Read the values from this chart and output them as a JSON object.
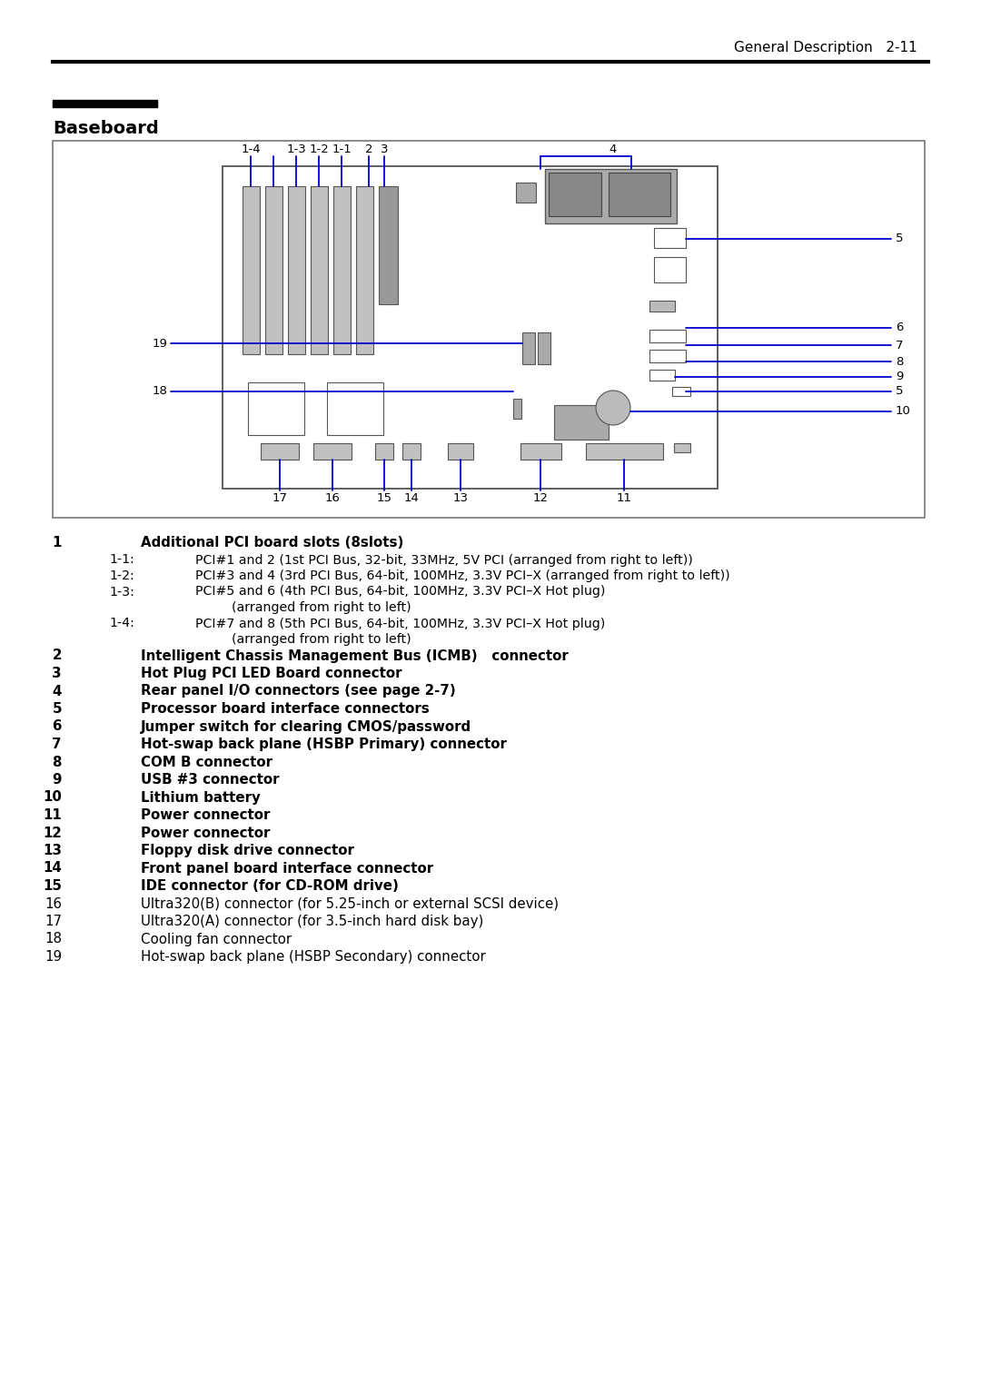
{
  "page_header": "General Description   2-11",
  "section_title": "Baseboard",
  "bg_color": "#ffffff",
  "blue": "#0000cc",
  "black": "#000000",
  "list_items": [
    {
      "num": "1",
      "bold": true,
      "indent": 0,
      "text": "Additional PCI board slots (8slots)"
    },
    {
      "num": "1-1:",
      "bold": false,
      "indent": 1,
      "text": "PCI#1 and 2 (1st PCI Bus, 32-bit, 33MHz, 5V PCI (arranged from right to left))"
    },
    {
      "num": "1-2:",
      "bold": false,
      "indent": 1,
      "text": "PCI#3 and 4 (3rd PCI Bus, 64-bit, 100MHz, 3.3V PCI–X (arranged from right to left))"
    },
    {
      "num": "1-3:",
      "bold": false,
      "indent": 1,
      "text": "PCI#5 and 6 (4th PCI Bus, 64-bit, 100MHz, 3.3V PCI–X Hot plug)"
    },
    {
      "num": "",
      "bold": false,
      "indent": 2,
      "text": "(arranged from right to left)"
    },
    {
      "num": "1-4:",
      "bold": false,
      "indent": 1,
      "text": "PCI#7 and 8 (5th PCI Bus, 64-bit, 100MHz, 3.3V PCI–X Hot plug)"
    },
    {
      "num": "",
      "bold": false,
      "indent": 2,
      "text": "(arranged from right to left)"
    },
    {
      "num": "2",
      "bold": true,
      "indent": 0,
      "text": "Intelligent Chassis Management Bus (ICMB)   connector"
    },
    {
      "num": "3",
      "bold": true,
      "indent": 0,
      "text": "Hot Plug PCI LED Board connector"
    },
    {
      "num": "4",
      "bold": true,
      "indent": 0,
      "text": "Rear panel I/O connectors (see page 2-7)"
    },
    {
      "num": "5",
      "bold": true,
      "indent": 0,
      "text": "Processor board interface connectors"
    },
    {
      "num": "6",
      "bold": true,
      "indent": 0,
      "text": "Jumper switch for clearing CMOS/password"
    },
    {
      "num": "7",
      "bold": true,
      "indent": 0,
      "text": "Hot-swap back plane (HSBP Primary) connector"
    },
    {
      "num": "8",
      "bold": true,
      "indent": 0,
      "text": "COM B connector"
    },
    {
      "num": "9",
      "bold": true,
      "indent": 0,
      "text": "USB #3 connector"
    },
    {
      "num": "10",
      "bold": true,
      "indent": 0,
      "text": "Lithium battery"
    },
    {
      "num": "11",
      "bold": true,
      "indent": 0,
      "text": "Power connector"
    },
    {
      "num": "12",
      "bold": true,
      "indent": 0,
      "text": "Power connector"
    },
    {
      "num": "13",
      "bold": true,
      "indent": 0,
      "text": "Floppy disk drive connector"
    },
    {
      "num": "14",
      "bold": true,
      "indent": 0,
      "text": "Front panel board interface connector"
    },
    {
      "num": "15",
      "bold": true,
      "indent": 0,
      "text": "IDE connector (for CD-ROM drive)"
    },
    {
      "num": "16",
      "bold": false,
      "indent": 0,
      "text": "Ultra320(B) connector (for 5.25-inch or external SCSI device)"
    },
    {
      "num": "17",
      "bold": false,
      "indent": 0,
      "text": "Ultra320(A) connector (for 3.5-inch hard disk bay)"
    },
    {
      "num": "18",
      "bold": false,
      "indent": 0,
      "text": "Cooling fan connector"
    },
    {
      "num": "19",
      "bold": false,
      "indent": 0,
      "text": "Hot-swap back plane (HSBP Secondary) connector"
    }
  ]
}
